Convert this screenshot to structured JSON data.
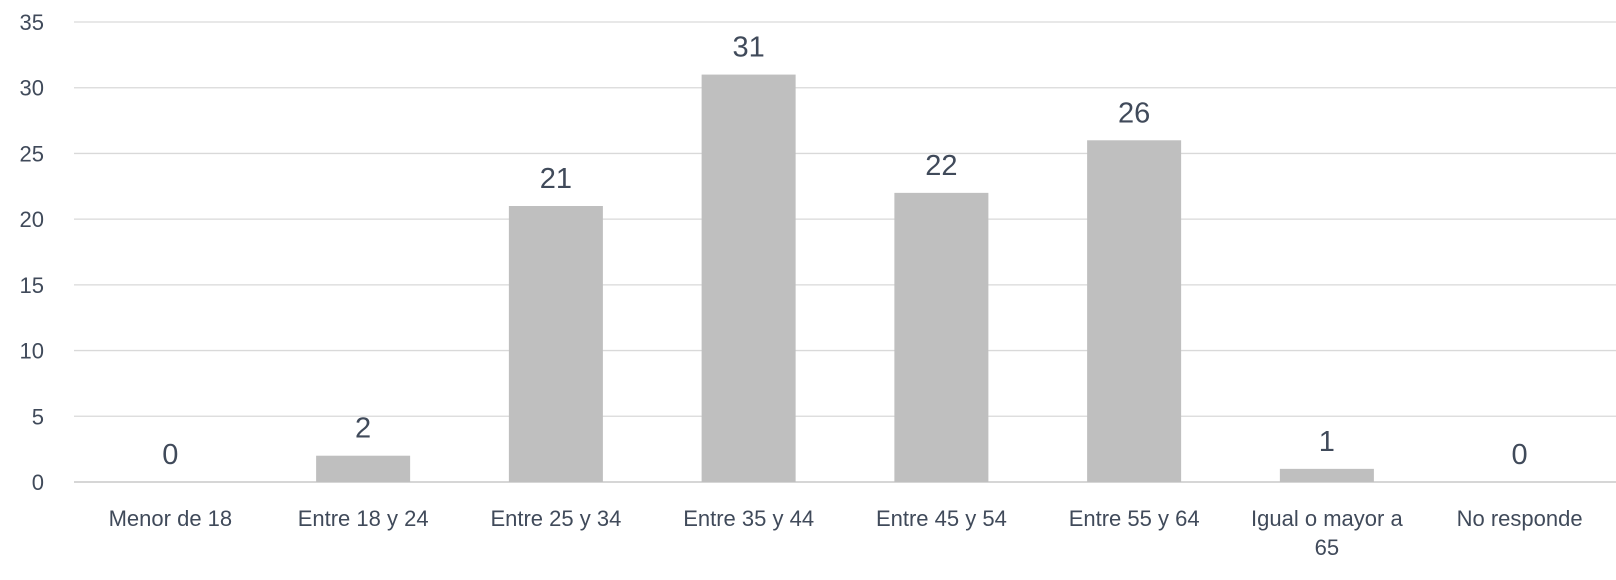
{
  "chart_data": {
    "type": "bar",
    "title": "",
    "xlabel": "",
    "ylabel": "",
    "categories": [
      "Menor de 18",
      "Entre 18 y 24",
      "Entre 25 y 34",
      "Entre 35 y 44",
      "Entre 45 y 54",
      "Entre 55 y 64",
      "Igual o mayor a 65",
      "No responde"
    ],
    "category_lines": [
      [
        "Menor de 18"
      ],
      [
        "Entre 18 y 24"
      ],
      [
        "Entre 25 y 34"
      ],
      [
        "Entre 35 y 44"
      ],
      [
        "Entre 45 y 54"
      ],
      [
        "Entre 55 y 64"
      ],
      [
        "Igual o mayor a",
        "65"
      ],
      [
        "No responde"
      ]
    ],
    "values": [
      0,
      2,
      21,
      31,
      22,
      26,
      1,
      0
    ],
    "ylim": [
      0,
      35
    ],
    "yticks": [
      0,
      5,
      10,
      15,
      20,
      25,
      30,
      35
    ],
    "grid": true,
    "legend": "none",
    "bar_color": "#bfbfbf",
    "gridline_color": "#d9d9d9",
    "text_color": "#404a5a"
  }
}
